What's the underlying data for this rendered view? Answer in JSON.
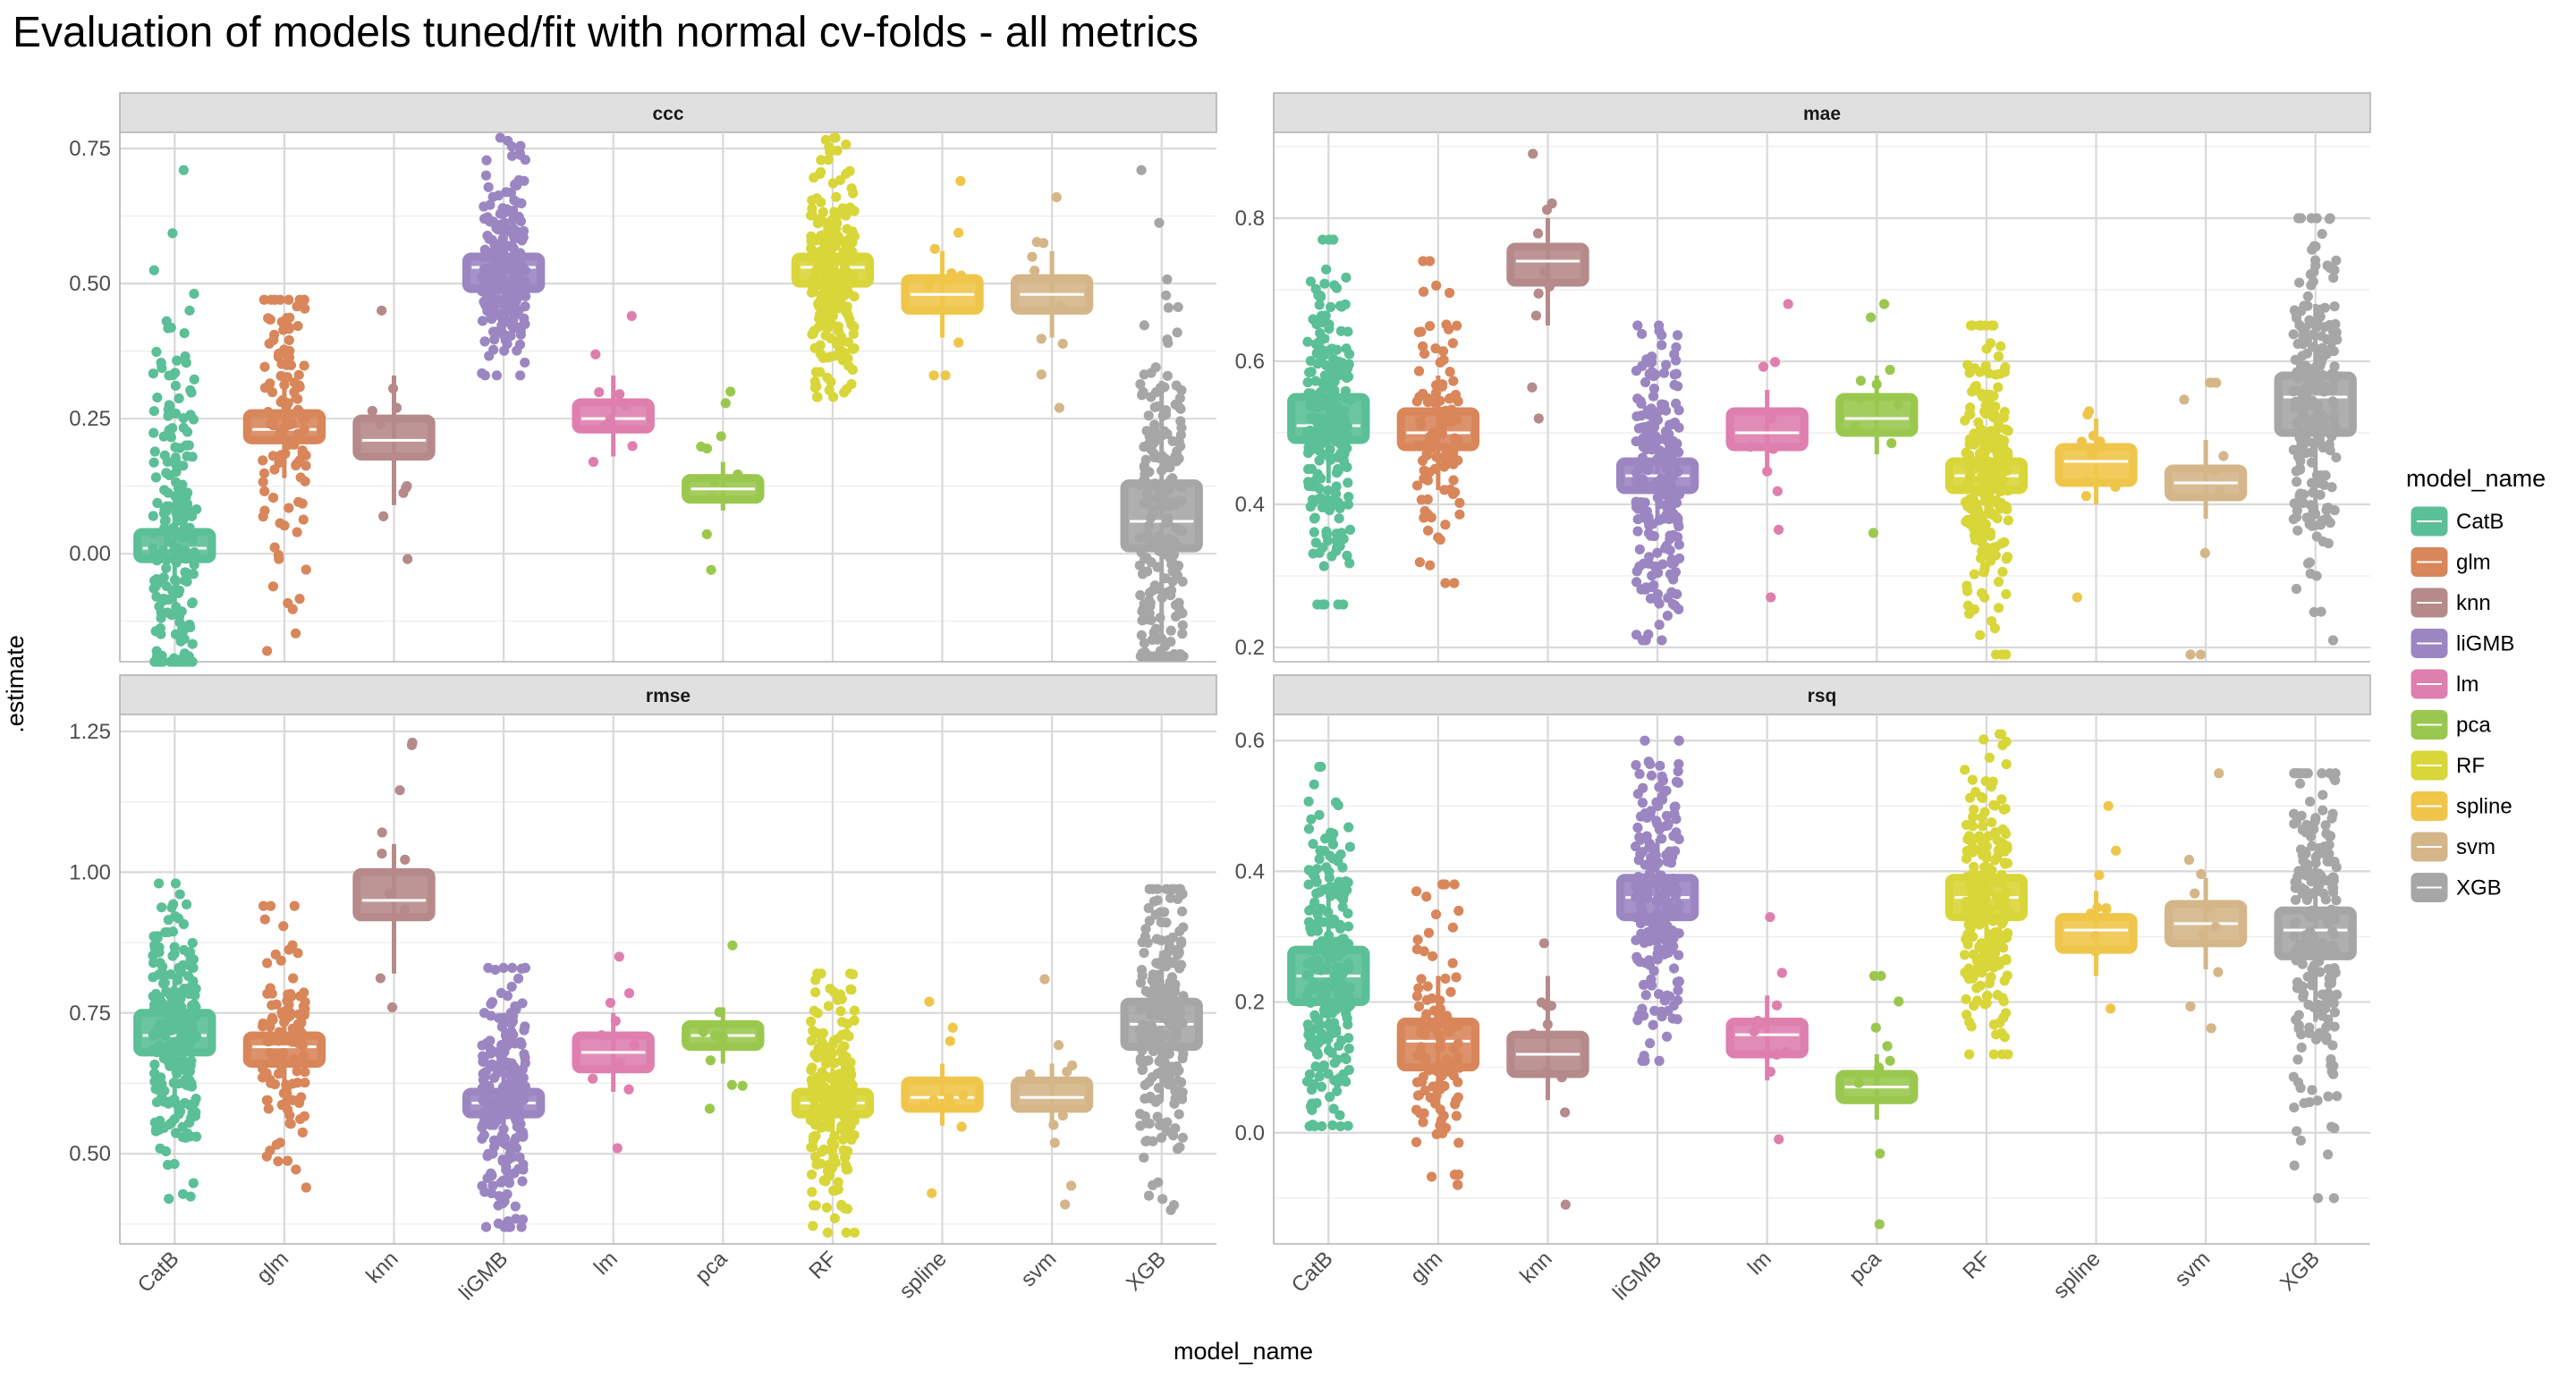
{
  "chart_data": {
    "type": "boxplot",
    "title": "Evaluation of models tuned/fit with normal cv-folds - all metrics",
    "xlabel": "model_name",
    "ylabel": ".estimate",
    "legend": {
      "title": "model_name",
      "position": "right"
    },
    "grid": true,
    "categories": [
      "CatB",
      "glm",
      "knn",
      "liGMB",
      "lm",
      "pca",
      "RF",
      "spline",
      "svm",
      "XGB"
    ],
    "colors": {
      "CatB": "#5bbf97",
      "glm": "#d8865a",
      "knn": "#b68a8a",
      "liGMB": "#9b86c2",
      "lm": "#de7fae",
      "pca": "#9ac84f",
      "RF": "#d8d638",
      "spline": "#efc64a",
      "svm": "#d4b688",
      "XGB": "#a6a6a6"
    },
    "panels": [
      {
        "facet": "ccc",
        "ylim": [
          -0.2,
          0.78
        ],
        "yticks": [
          0.0,
          0.25,
          0.5,
          0.75
        ],
        "ytick_labels": [
          "0.00",
          "0.25",
          "0.50",
          "0.75"
        ],
        "boxes": [
          {
            "model": "CatB",
            "q1": -0.01,
            "median": 0.01,
            "q3": 0.04,
            "wlow": -0.09,
            "whigh": 0.11,
            "n": 220,
            "min": -0.2,
            "max": 0.71
          },
          {
            "model": "glm",
            "q1": 0.21,
            "median": 0.23,
            "q3": 0.26,
            "wlow": 0.14,
            "whigh": 0.33,
            "n": 110,
            "min": -0.18,
            "max": 0.47
          },
          {
            "model": "knn",
            "q1": 0.18,
            "median": 0.21,
            "q3": 0.25,
            "wlow": 0.09,
            "whigh": 0.33,
            "n": 10,
            "min": -0.01,
            "max": 0.45
          },
          {
            "model": "liGMB",
            "q1": 0.49,
            "median": 0.53,
            "q3": 0.55,
            "wlow": 0.4,
            "whigh": 0.64,
            "n": 220,
            "min": 0.33,
            "max": 0.77
          },
          {
            "model": "lm",
            "q1": 0.23,
            "median": 0.25,
            "q3": 0.28,
            "wlow": 0.18,
            "whigh": 0.33,
            "n": 10,
            "min": 0.17,
            "max": 0.44
          },
          {
            "model": "pca",
            "q1": 0.1,
            "median": 0.12,
            "q3": 0.14,
            "wlow": 0.08,
            "whigh": 0.17,
            "n": 10,
            "min": -0.03,
            "max": 0.3
          },
          {
            "model": "RF",
            "q1": 0.5,
            "median": 0.53,
            "q3": 0.55,
            "wlow": 0.42,
            "whigh": 0.64,
            "n": 220,
            "min": 0.29,
            "max": 0.77
          },
          {
            "model": "spline",
            "q1": 0.45,
            "median": 0.48,
            "q3": 0.51,
            "wlow": 0.4,
            "whigh": 0.56,
            "n": 10,
            "min": 0.33,
            "max": 0.69
          },
          {
            "model": "svm",
            "q1": 0.45,
            "median": 0.48,
            "q3": 0.51,
            "wlow": 0.4,
            "whigh": 0.56,
            "n": 10,
            "min": 0.27,
            "max": 0.66
          },
          {
            "model": "XGB",
            "q1": 0.01,
            "median": 0.06,
            "q3": 0.13,
            "wlow": -0.15,
            "whigh": 0.32,
            "n": 220,
            "min": -0.19,
            "max": 0.71
          }
        ]
      },
      {
        "facet": "mae",
        "ylim": [
          0.18,
          0.92
        ],
        "yticks": [
          0.2,
          0.4,
          0.6,
          0.8
        ],
        "ytick_labels": [
          "0.2",
          "0.4",
          "0.6",
          "0.8"
        ],
        "boxes": [
          {
            "model": "CatB",
            "q1": 0.49,
            "median": 0.51,
            "q3": 0.55,
            "wlow": 0.43,
            "whigh": 0.6,
            "n": 220,
            "min": 0.26,
            "max": 0.77
          },
          {
            "model": "glm",
            "q1": 0.48,
            "median": 0.5,
            "q3": 0.53,
            "wlow": 0.42,
            "whigh": 0.58,
            "n": 110,
            "min": 0.29,
            "max": 0.74
          },
          {
            "model": "knn",
            "q1": 0.71,
            "median": 0.74,
            "q3": 0.76,
            "wlow": 0.65,
            "whigh": 0.8,
            "n": 10,
            "min": 0.52,
            "max": 0.89
          },
          {
            "model": "liGMB",
            "q1": 0.42,
            "median": 0.44,
            "q3": 0.46,
            "wlow": 0.38,
            "whigh": 0.5,
            "n": 220,
            "min": 0.21,
            "max": 0.65
          },
          {
            "model": "lm",
            "q1": 0.48,
            "median": 0.5,
            "q3": 0.53,
            "wlow": 0.45,
            "whigh": 0.56,
            "n": 10,
            "min": 0.27,
            "max": 0.68
          },
          {
            "model": "pca",
            "q1": 0.5,
            "median": 0.52,
            "q3": 0.55,
            "wlow": 0.47,
            "whigh": 0.58,
            "n": 10,
            "min": 0.36,
            "max": 0.68
          },
          {
            "model": "RF",
            "q1": 0.42,
            "median": 0.44,
            "q3": 0.46,
            "wlow": 0.38,
            "whigh": 0.5,
            "n": 220,
            "min": 0.19,
            "max": 0.65
          },
          {
            "model": "spline",
            "q1": 0.43,
            "median": 0.46,
            "q3": 0.48,
            "wlow": 0.4,
            "whigh": 0.52,
            "n": 10,
            "min": 0.27,
            "max": 0.53
          },
          {
            "model": "svm",
            "q1": 0.41,
            "median": 0.43,
            "q3": 0.45,
            "wlow": 0.38,
            "whigh": 0.49,
            "n": 10,
            "min": 0.19,
            "max": 0.57
          },
          {
            "model": "XGB",
            "q1": 0.5,
            "median": 0.55,
            "q3": 0.58,
            "wlow": 0.4,
            "whigh": 0.68,
            "n": 220,
            "min": 0.21,
            "max": 0.8
          }
        ]
      },
      {
        "facet": "rmse",
        "ylim": [
          0.34,
          1.28
        ],
        "yticks": [
          0.5,
          0.75,
          1.0,
          1.25
        ],
        "ytick_labels": [
          "0.50",
          "0.75",
          "1.00",
          "1.25"
        ],
        "boxes": [
          {
            "model": "CatB",
            "q1": 0.68,
            "median": 0.71,
            "q3": 0.75,
            "wlow": 0.6,
            "whigh": 0.82,
            "n": 220,
            "min": 0.42,
            "max": 0.98
          },
          {
            "model": "glm",
            "q1": 0.66,
            "median": 0.69,
            "q3": 0.71,
            "wlow": 0.62,
            "whigh": 0.76,
            "n": 110,
            "min": 0.44,
            "max": 0.94
          },
          {
            "model": "knn",
            "q1": 0.92,
            "median": 0.95,
            "q3": 1.0,
            "wlow": 0.82,
            "whigh": 1.05,
            "n": 10,
            "min": 0.76,
            "max": 1.23
          },
          {
            "model": "liGMB",
            "q1": 0.57,
            "median": 0.59,
            "q3": 0.61,
            "wlow": 0.51,
            "whigh": 0.66,
            "n": 220,
            "min": 0.37,
            "max": 0.83
          },
          {
            "model": "lm",
            "q1": 0.65,
            "median": 0.68,
            "q3": 0.71,
            "wlow": 0.61,
            "whigh": 0.75,
            "n": 10,
            "min": 0.51,
            "max": 0.85
          },
          {
            "model": "pca",
            "q1": 0.69,
            "median": 0.71,
            "q3": 0.73,
            "wlow": 0.66,
            "whigh": 0.76,
            "n": 10,
            "min": 0.58,
            "max": 0.87
          },
          {
            "model": "RF",
            "q1": 0.57,
            "median": 0.59,
            "q3": 0.61,
            "wlow": 0.51,
            "whigh": 0.66,
            "n": 220,
            "min": 0.36,
            "max": 0.82
          },
          {
            "model": "spline",
            "q1": 0.58,
            "median": 0.6,
            "q3": 0.63,
            "wlow": 0.55,
            "whigh": 0.66,
            "n": 10,
            "min": 0.43,
            "max": 0.77
          },
          {
            "model": "svm",
            "q1": 0.58,
            "median": 0.6,
            "q3": 0.63,
            "wlow": 0.55,
            "whigh": 0.66,
            "n": 10,
            "min": 0.41,
            "max": 0.81
          },
          {
            "model": "XGB",
            "q1": 0.69,
            "median": 0.73,
            "q3": 0.77,
            "wlow": 0.6,
            "whigh": 0.86,
            "n": 220,
            "min": 0.4,
            "max": 0.97
          }
        ]
      },
      {
        "facet": "rsq",
        "ylim": [
          -0.17,
          0.64
        ],
        "yticks": [
          0.0,
          0.2,
          0.4,
          0.6
        ],
        "ytick_labels": [
          "0.0",
          "0.2",
          "0.4",
          "0.6"
        ],
        "boxes": [
          {
            "model": "CatB",
            "q1": 0.2,
            "median": 0.24,
            "q3": 0.28,
            "wlow": 0.12,
            "whigh": 0.36,
            "n": 220,
            "min": 0.01,
            "max": 0.56
          },
          {
            "model": "glm",
            "q1": 0.1,
            "median": 0.14,
            "q3": 0.17,
            "wlow": 0.04,
            "whigh": 0.24,
            "n": 110,
            "min": -0.08,
            "max": 0.38
          },
          {
            "model": "knn",
            "q1": 0.09,
            "median": 0.12,
            "q3": 0.15,
            "wlow": 0.05,
            "whigh": 0.24,
            "n": 10,
            "min": -0.11,
            "max": 0.29
          },
          {
            "model": "liGMB",
            "q1": 0.33,
            "median": 0.36,
            "q3": 0.39,
            "wlow": 0.26,
            "whigh": 0.45,
            "n": 220,
            "min": 0.11,
            "max": 0.6
          },
          {
            "model": "lm",
            "q1": 0.12,
            "median": 0.15,
            "q3": 0.17,
            "wlow": 0.08,
            "whigh": 0.21,
            "n": 10,
            "min": -0.01,
            "max": 0.33
          },
          {
            "model": "pca",
            "q1": 0.05,
            "median": 0.07,
            "q3": 0.09,
            "wlow": 0.02,
            "whigh": 0.12,
            "n": 10,
            "min": -0.14,
            "max": 0.24
          },
          {
            "model": "RF",
            "q1": 0.33,
            "median": 0.36,
            "q3": 0.39,
            "wlow": 0.26,
            "whigh": 0.45,
            "n": 220,
            "min": 0.12,
            "max": 0.61
          },
          {
            "model": "spline",
            "q1": 0.28,
            "median": 0.31,
            "q3": 0.33,
            "wlow": 0.24,
            "whigh": 0.37,
            "n": 10,
            "min": 0.19,
            "max": 0.5
          },
          {
            "model": "svm",
            "q1": 0.29,
            "median": 0.32,
            "q3": 0.35,
            "wlow": 0.25,
            "whigh": 0.39,
            "n": 10,
            "min": 0.16,
            "max": 0.55
          },
          {
            "model": "XGB",
            "q1": 0.27,
            "median": 0.31,
            "q3": 0.34,
            "wlow": 0.17,
            "whigh": 0.43,
            "n": 220,
            "min": -0.1,
            "max": 0.55
          }
        ]
      }
    ]
  }
}
